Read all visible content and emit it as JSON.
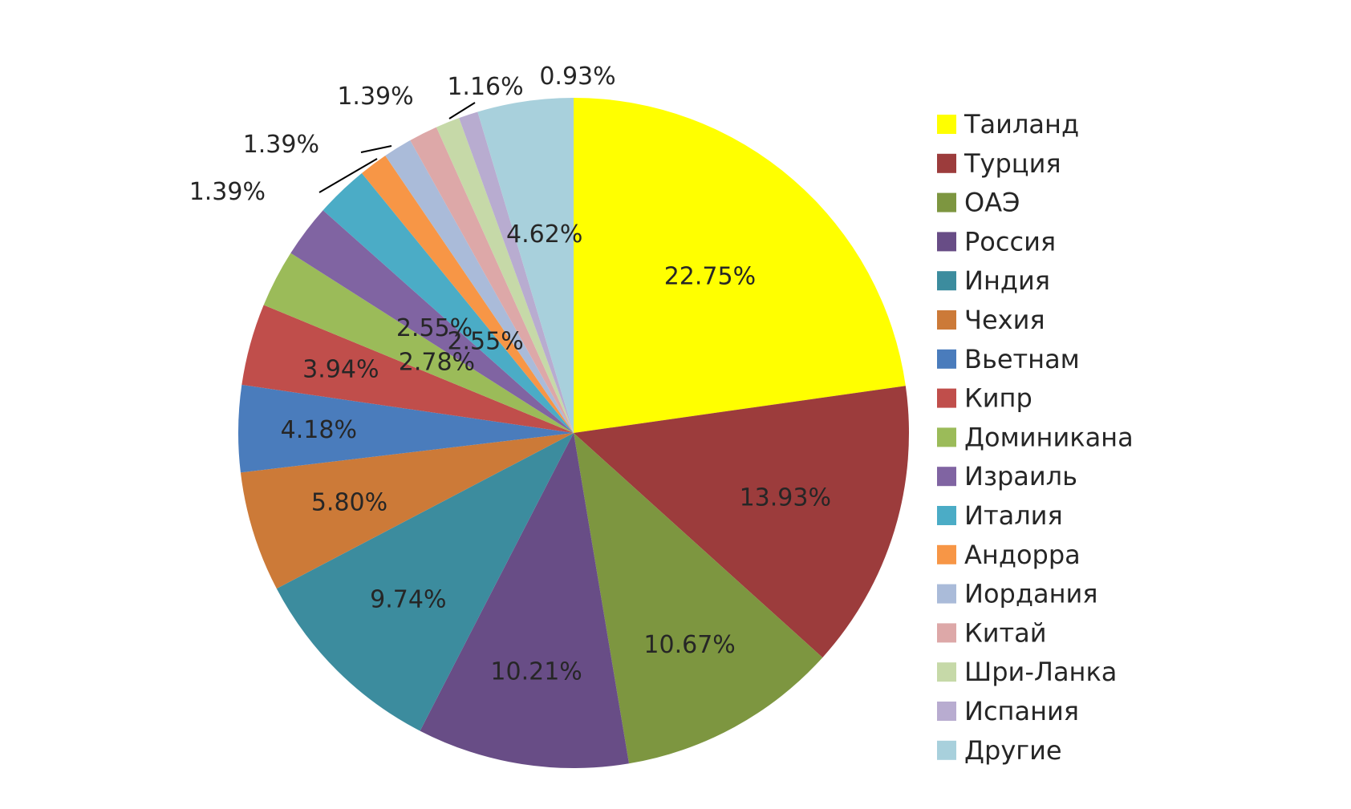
{
  "chart_data": {
    "type": "pie",
    "title": "",
    "slices": [
      {
        "name": "Таиланд",
        "value": 22.75,
        "label": "22.75%",
        "color": "#ffff00"
      },
      {
        "name": "Турция",
        "value": 13.93,
        "label": "13.93%",
        "color": "#9c3c3c"
      },
      {
        "name": "ОАЭ",
        "value": 10.67,
        "label": "10.67%",
        "color": "#7d9640"
      },
      {
        "name": "Россия",
        "value": 10.21,
        "label": "10.21%",
        "color": "#684d86"
      },
      {
        "name": "Индия",
        "value": 9.74,
        "label": "9.74%",
        "color": "#3c8c9e"
      },
      {
        "name": "Чехия",
        "value": 5.8,
        "label": "5.80%",
        "color": "#cc7a38"
      },
      {
        "name": "Вьетнам",
        "value": 4.18,
        "label": "4.18%",
        "color": "#4a7cbc"
      },
      {
        "name": "Кипр",
        "value": 3.94,
        "label": "3.94%",
        "color": "#c04e4b"
      },
      {
        "name": "Доминикана",
        "value": 2.78,
        "label": "2.78%",
        "color": "#9bbb59"
      },
      {
        "name": "Израиль",
        "value": 2.55,
        "label": "2.55%",
        "color": "#8064a2"
      },
      {
        "name": "Италия",
        "value": 2.55,
        "label": "2.55%",
        "color": "#4bacc6"
      },
      {
        "name": "Андорра",
        "value": 1.39,
        "label": "1.39%",
        "color": "#f79646"
      },
      {
        "name": "Иордания",
        "value": 1.39,
        "label": "1.39%",
        "color": "#aabbd9"
      },
      {
        "name": "Китай",
        "value": 1.39,
        "label": "1.39%",
        "color": "#dda8a8"
      },
      {
        "name": "Шри-Ланка",
        "value": 1.16,
        "label": "1.16%",
        "color": "#c6d9a8"
      },
      {
        "name": "Испания",
        "value": 0.93,
        "label": "0.93%",
        "color": "#b8acd0"
      },
      {
        "name": "Другие",
        "value": 4.62,
        "label": "4.62%",
        "color": "#a8d0dc"
      }
    ],
    "start": "12 o'clock, clockwise",
    "legend_position": "right"
  }
}
